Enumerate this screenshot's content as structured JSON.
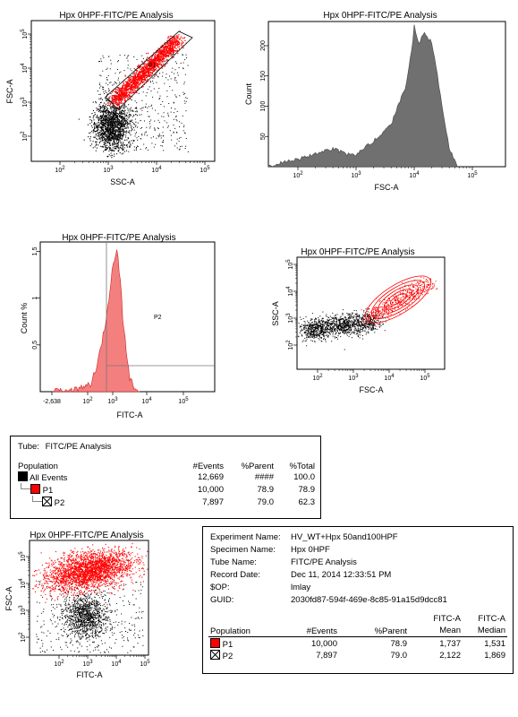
{
  "chart_data": [
    {
      "type": "scatter",
      "title": "Hpx 0HPF-FITC/PE Analysis",
      "xlabel": "SSC-A",
      "ylabel": "FSC-A",
      "xticks": [
        "10^2",
        "10^3",
        "10^4",
        "10^5"
      ],
      "yticks": [
        "10^2",
        "10^3",
        "10^4",
        "10^5"
      ],
      "scale": "log",
      "gate": "P1",
      "series": [
        {
          "name": "All Events",
          "color": "#000000"
        },
        {
          "name": "P1",
          "color": "#ff0000"
        }
      ]
    },
    {
      "type": "area",
      "title": "Hpx 0HPF-FITC/PE Analysis",
      "xlabel": "FSC-A",
      "ylabel": "Count",
      "xticks": [
        "10^2",
        "10^3",
        "10^4",
        "10^5"
      ],
      "yticks": [
        50,
        100,
        150,
        200
      ],
      "ylim": [
        0,
        240
      ],
      "scale": "log",
      "fill": "#707070",
      "x": [
        30,
        60,
        100,
        200,
        400,
        700,
        1000,
        2000,
        4000,
        7000,
        9000,
        10000,
        12000,
        15000,
        20000,
        25000,
        30000,
        40000,
        55000
      ],
      "y": [
        0,
        8,
        12,
        22,
        30,
        20,
        20,
        42,
        70,
        130,
        190,
        232,
        205,
        220,
        205,
        150,
        100,
        30,
        3
      ]
    },
    {
      "type": "area",
      "title": "Hpx 0HPF-FITC/PE Analysis",
      "xlabel": "FITC-A",
      "ylabel": "Count %",
      "yticks": [
        "0.5",
        "1",
        "1.5"
      ],
      "xticks": [
        "-2,638",
        "10^2",
        "10^3",
        "10^4",
        "10^5"
      ],
      "ylim": [
        0,
        1.6
      ],
      "gate": "P2",
      "fill": "#f47f7f",
      "x": [
        0,
        20,
        60,
        100,
        200,
        400,
        700,
        1000,
        1500,
        2000,
        3000,
        4000,
        6000,
        9000,
        15000,
        30000
      ],
      "y": [
        0.0,
        0.02,
        0.05,
        0.1,
        0.3,
        0.6,
        0.9,
        1.2,
        1.42,
        1.52,
        1.2,
        0.8,
        0.45,
        0.15,
        0.05,
        0.0
      ]
    },
    {
      "type": "scatter",
      "title": "Hpx 0HPF-FITC/PE Analysis",
      "xlabel": "FSC-A",
      "ylabel": "SSC-A",
      "xticks": [
        "10^2",
        "10^3",
        "10^4",
        "10^5"
      ],
      "yticks": [
        "10^2",
        "10^3",
        "10^4",
        "10^5"
      ],
      "scale": "log",
      "series": [
        {
          "name": "All Events",
          "color": "#000000"
        },
        {
          "name": "P1",
          "color": "#ff0000"
        }
      ]
    },
    {
      "type": "scatter",
      "title": "Hpx 0HPF-FITC/PE Analysis",
      "xlabel": "FITC-A",
      "ylabel": "FSC-A",
      "xticks": [
        "10^2",
        "10^3",
        "10^4",
        "10^5"
      ],
      "yticks": [
        "10^2",
        "10^3",
        "10^4",
        "10^5"
      ],
      "scale": "log",
      "series": [
        {
          "name": "All Events",
          "color": "#000000"
        },
        {
          "name": "P1",
          "color": "#ff0000"
        }
      ]
    },
    {
      "type": "table",
      "header": {
        "tube_label": "Tube:",
        "tube_value": "FITC/PE Analysis"
      },
      "columns": [
        "Population",
        "#Events",
        "%Parent",
        "%Total"
      ],
      "rows": [
        {
          "name": "All Events",
          "swatch": "#000000",
          "events": "12,669",
          "parent": "####",
          "total": "100.0"
        },
        {
          "name": "P1",
          "swatch": "#ff0000",
          "events": "10,000",
          "parent": "78.9",
          "total": "78.9"
        },
        {
          "name": "P2",
          "swatch": "boxed-x",
          "events": "7,897",
          "parent": "79.0",
          "total": "62.3"
        }
      ]
    },
    {
      "type": "table",
      "meta": [
        {
          "label": "Experiment Name:",
          "value": "HV_WT+Hpx 50and100HPF"
        },
        {
          "label": "Specimen Name:",
          "value": "Hpx 0HPF"
        },
        {
          "label": "Tube Name:",
          "value": "FITC/PE Analysis"
        },
        {
          "label": "Record Date:",
          "value": "Dec 11, 2014 12:33:51 PM"
        },
        {
          "label": "$OP:",
          "value": "lmlay"
        },
        {
          "label": "GUID:",
          "value": "2030fd87-594f-469e-8c85-91a15d9dcc81"
        }
      ],
      "columns": [
        "Population",
        "#Events",
        "%Parent",
        "FITC-A\nMean",
        "FITC-A\nMedian"
      ],
      "rows": [
        {
          "name": "P1",
          "swatch": "#ff0000",
          "events": "10,000",
          "parent": "78.9",
          "mean": "1,737",
          "median": "1,531"
        },
        {
          "name": "P2",
          "swatch": "boxed-x",
          "events": "7,897",
          "parent": "79.0",
          "mean": "2,122",
          "median": "1,869"
        }
      ]
    }
  ]
}
